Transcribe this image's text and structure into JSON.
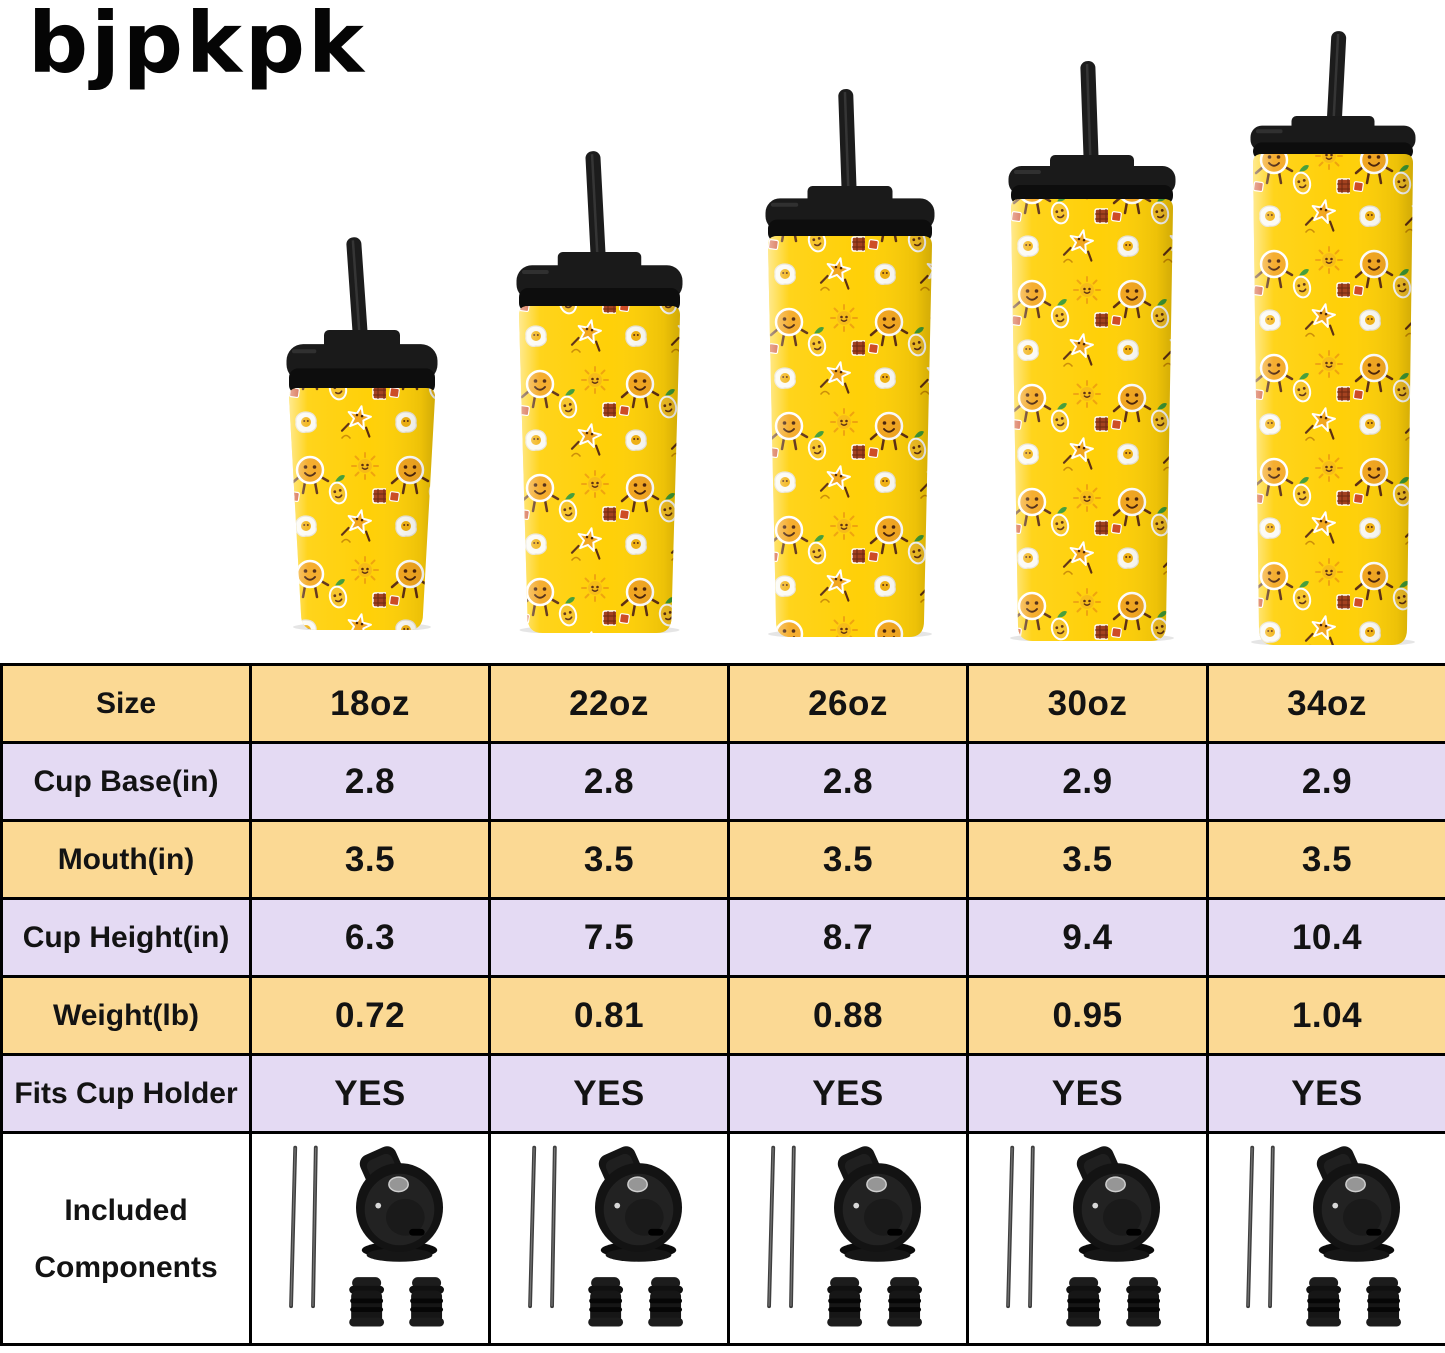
{
  "brand": {
    "logo_text": "bjpkpk"
  },
  "hero": {
    "sizes": [
      "18oz",
      "22oz",
      "26oz",
      "30oz",
      "34oz"
    ],
    "colors": {
      "cup": "#FFD008",
      "lid": "#1A1A1A",
      "straw": "#1C1C1C"
    }
  },
  "table": {
    "colors": {
      "header_bg": "#FBD994",
      "alt_bg": "#E4DAF3",
      "components_bg": "#FFFFFF",
      "border": "#000000",
      "text": "#131313"
    },
    "rows": [
      {
        "label": "Size",
        "values": [
          "18oz",
          "22oz",
          "26oz",
          "30oz",
          "34oz"
        ]
      },
      {
        "label": "Cup Base(in)",
        "values": [
          "2.8",
          "2.8",
          "2.8",
          "2.9",
          "2.9"
        ]
      },
      {
        "label": "Mouth(in)",
        "values": [
          "3.5",
          "3.5",
          "3.5",
          "3.5",
          "3.5"
        ]
      },
      {
        "label": "Cup Height(in)",
        "values": [
          "6.3",
          "7.5",
          "8.7",
          "9.4",
          "10.4"
        ]
      },
      {
        "label": "Weight(lb)",
        "values": [
          "0.72",
          "0.81",
          "0.88",
          "0.95",
          "1.04"
        ]
      },
      {
        "label": "Fits Cup Holder",
        "values": [
          "YES",
          "YES",
          "YES",
          "YES",
          "YES"
        ]
      }
    ],
    "components_row": {
      "label_lines": [
        "Included",
        "Components"
      ],
      "items_per_cell": [
        "straw-icon",
        "straw-icon",
        "flip-lid-icon",
        "stopper-icon",
        "stopper-icon"
      ]
    }
  }
}
